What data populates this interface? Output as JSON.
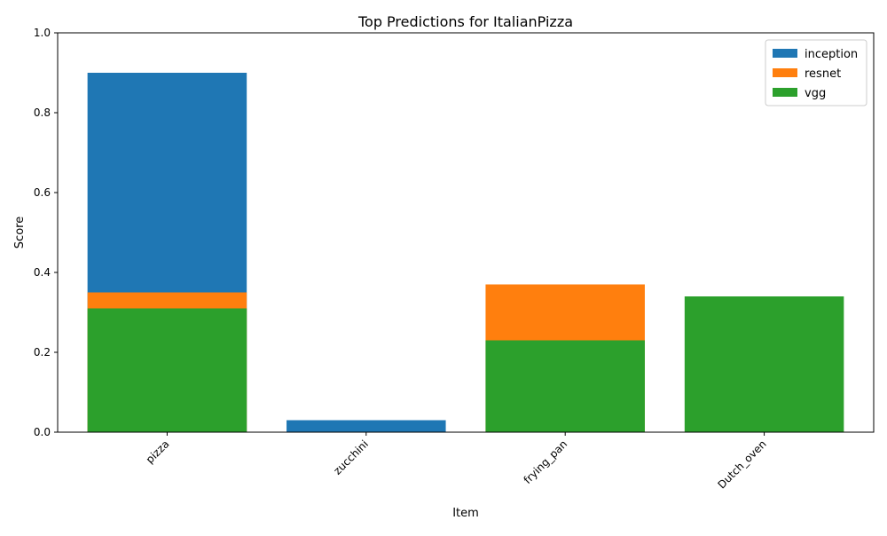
{
  "chart_data": {
    "type": "bar",
    "title": "Top Predictions for ItalianPizza",
    "xlabel": "Item",
    "ylabel": "Score",
    "ylim": [
      0,
      1
    ],
    "yticks": [
      "0.0",
      "0.2",
      "0.4",
      "0.6",
      "0.8",
      "1.0"
    ],
    "categories": [
      "pizza",
      "zucchini",
      "frying_pan",
      "Dutch_oven"
    ],
    "legend_position": "top-right",
    "overlay": true,
    "series": [
      {
        "name": "inception",
        "color": "#1f77b4",
        "values": [
          0.9,
          0.03,
          null,
          null
        ]
      },
      {
        "name": "resnet",
        "color": "#ff7f0e",
        "values": [
          0.35,
          null,
          0.37,
          null
        ]
      },
      {
        "name": "vgg",
        "color": "#2ca02c",
        "values": [
          0.31,
          null,
          0.23,
          0.34
        ]
      }
    ]
  }
}
